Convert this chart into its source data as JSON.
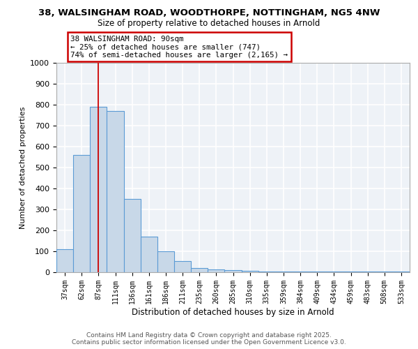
{
  "title1": "38, WALSINGHAM ROAD, WOODTHORPE, NOTTINGHAM, NG5 4NW",
  "title2": "Size of property relative to detached houses in Arnold",
  "xlabel": "Distribution of detached houses by size in Arnold",
  "ylabel": "Number of detached properties",
  "categories": [
    "37sqm",
    "62sqm",
    "87sqm",
    "111sqm",
    "136sqm",
    "161sqm",
    "186sqm",
    "211sqm",
    "235sqm",
    "260sqm",
    "285sqm",
    "310sqm",
    "335sqm",
    "359sqm",
    "384sqm",
    "409sqm",
    "434sqm",
    "459sqm",
    "483sqm",
    "508sqm",
    "533sqm"
  ],
  "values": [
    110,
    560,
    790,
    770,
    350,
    170,
    100,
    55,
    20,
    15,
    10,
    8,
    5,
    2,
    2,
    5,
    2,
    2,
    5,
    2,
    2
  ],
  "bar_color": "#c8d8e8",
  "bar_edge_color": "#5b9bd5",
  "background_color": "#eef2f7",
  "grid_color": "#ffffff",
  "red_line_x": 2.0,
  "annotation_line1": "38 WALSINGHAM ROAD: 90sqm",
  "annotation_line2": "← 25% of detached houses are smaller (747)",
  "annotation_line3": "74% of semi-detached houses are larger (2,165) →",
  "annotation_border_color": "#cc0000",
  "ylim": [
    0,
    1000
  ],
  "yticks": [
    0,
    100,
    200,
    300,
    400,
    500,
    600,
    700,
    800,
    900,
    1000
  ],
  "footer1": "Contains HM Land Registry data © Crown copyright and database right 2025.",
  "footer2": "Contains public sector information licensed under the Open Government Licence v3.0."
}
